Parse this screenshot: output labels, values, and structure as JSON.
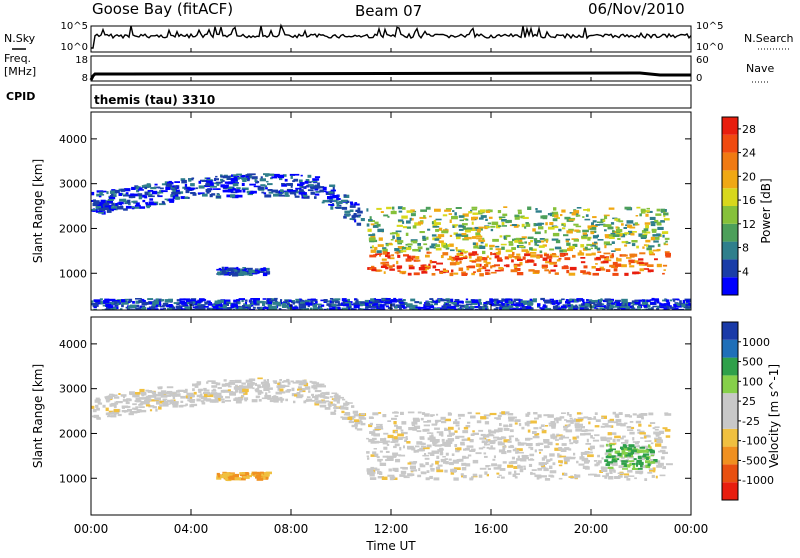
{
  "header": {
    "station": "Goose Bay (fitACF)",
    "beam": "Beam 07",
    "date": "06/Nov/2010"
  },
  "strip": {
    "nsky_label": "N.Sky",
    "nsky_ticks": [
      "10^5",
      "10^0"
    ],
    "nsearch_label": "N.Search",
    "nsearch_ticks": [
      "10^5",
      "10^0"
    ],
    "freq_label_line1": "Freq.",
    "freq_label_line2": "[MHz]",
    "freq_ticks": [
      "18",
      "8"
    ],
    "nave_label": "Nave",
    "nave_ticks": [
      "60",
      "0"
    ],
    "cpid_label": "CPID",
    "cpid_text": "themis (tau) 3310"
  },
  "colors": {
    "power_scale": [
      "#0000ff",
      "#1a3da8",
      "#2f7f8c",
      "#4c9f5a",
      "#86c13a",
      "#d8d81c",
      "#f0a814",
      "#f07a12",
      "#f04a10",
      "#e81e0e"
    ],
    "velocity_scale": [
      "#1a3aa8",
      "#1f6fb8",
      "#2fa04a",
      "#86d04a",
      "#c8c8c8",
      "#c8c8c8",
      "#f0c040",
      "#f09020",
      "#e85010",
      "#e81e0e"
    ]
  },
  "chart_data": [
    {
      "type": "heatmap",
      "panel": "power",
      "xlabel": "Time UT",
      "ylabel": "Slant Range [km]",
      "x_ticks": [
        "00:00",
        "04:00",
        "08:00",
        "12:00",
        "16:00",
        "20:00",
        "00:00"
      ],
      "x_hours": [
        0,
        4,
        8,
        12,
        16,
        20,
        24
      ],
      "y_ticks": [
        1000,
        2000,
        3000,
        4000
      ],
      "ylim": [
        180,
        4600
      ],
      "colorbar_label": "Power [dB]",
      "colorbar_ticks": [
        "4",
        "8",
        "12",
        "16",
        "20",
        "24",
        "28"
      ],
      "colorbar_range": [
        0,
        30
      ],
      "echo_regions": [
        {
          "name": "high-range band",
          "hours": [
            0,
            10.8
          ],
          "range_km": [
            2300,
            3200
          ],
          "power_db": [
            4,
            12
          ]
        },
        {
          "name": "near-range ground band",
          "hours": [
            0,
            24
          ],
          "range_km": [
            180,
            450
          ],
          "power_db": [
            4,
            8
          ]
        },
        {
          "name": "short patch",
          "hours": [
            5,
            7
          ],
          "range_km": [
            1000,
            1150
          ],
          "power_db": [
            4,
            8
          ]
        },
        {
          "name": "main echo band",
          "hours": [
            11,
            23
          ],
          "range_km": [
            900,
            2500
          ],
          "power_db": [
            12,
            30
          ]
        }
      ]
    },
    {
      "type": "heatmap",
      "panel": "velocity",
      "xlabel": "Time UT",
      "ylabel": "Slant Range [km]",
      "x_ticks": [
        "00:00",
        "04:00",
        "08:00",
        "12:00",
        "16:00",
        "20:00",
        "00:00"
      ],
      "x_hours": [
        0,
        4,
        8,
        12,
        16,
        20,
        24
      ],
      "y_ticks": [
        1000,
        2000,
        3000,
        4000
      ],
      "ylim": [
        180,
        4600
      ],
      "colorbar_label": "Velocity [m s^-1]",
      "colorbar_ticks": [
        "1000",
        "500",
        "100",
        "25",
        "-25",
        "-100",
        "-500",
        "-1000"
      ],
      "echo_regions": [
        {
          "name": "high-range band",
          "hours": [
            0,
            10.8
          ],
          "range_km": [
            2300,
            3200
          ],
          "velocity_ms": [
            -25,
            25
          ]
        },
        {
          "name": "short patch",
          "hours": [
            5,
            7
          ],
          "range_km": [
            1000,
            1150
          ],
          "velocity_ms": [
            -300,
            -100
          ]
        },
        {
          "name": "main echo band",
          "hours": [
            11,
            23
          ],
          "range_km": [
            900,
            2500
          ],
          "velocity_ms": [
            -25,
            25
          ]
        },
        {
          "name": "green patch",
          "hours": [
            20.5,
            22.5
          ],
          "range_km": [
            1200,
            1800
          ],
          "velocity_ms": [
            100,
            500
          ]
        }
      ]
    }
  ]
}
